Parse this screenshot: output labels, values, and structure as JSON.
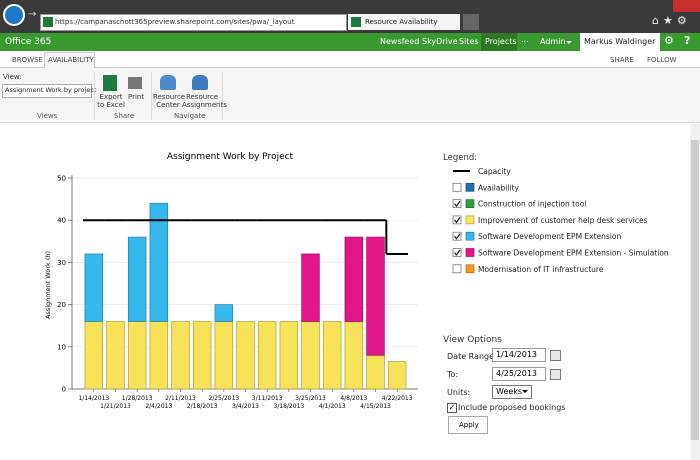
{
  "browser": {
    "url": "https://campanaschott365preview.sharepoint.com/sites/pwa/_layouts/15/PWA/Ri...",
    "tab": "Resource Availability"
  },
  "suite_bar": {
    "brand": "Office 365",
    "links": [
      "Newsfeed",
      "SkyDrive",
      "Sites",
      "Projects",
      "...",
      "Admin"
    ],
    "user": "Markus Waldinger"
  },
  "ribbon": {
    "tabs": [
      "BROWSE",
      "AVAILABILITY"
    ],
    "actions": [
      "SHARE",
      "FOLLOW"
    ],
    "view_label": "View:",
    "view_select": "Assignment Work by project",
    "groups": [
      "Views",
      "Share",
      "Navigate"
    ],
    "buttons": [
      "Export to Excel",
      "Print",
      "Resource Center",
      "Resource Assignments"
    ]
  },
  "chart_data": {
    "type": "bar",
    "stacked": true,
    "title": "Assignment Work by Project",
    "ylabel": "Assignment Work (h)",
    "categories": [
      "1/14/2013",
      "1/21/2013",
      "1/28/2013",
      "2/4/2013",
      "2/11/2013",
      "2/18/2013",
      "2/25/2013",
      "3/4/2013",
      "3/11/2013",
      "3/18/2013",
      "3/25/2013",
      "4/1/2013",
      "4/8/2013",
      "4/15/2013",
      "4/22/2013"
    ],
    "ylim": [
      0,
      50
    ],
    "yticks": [
      0,
      10,
      20,
      30,
      40,
      50
    ],
    "grid": true,
    "legend_title": "Legend:",
    "capacity": {
      "name": "Capacity",
      "color": "#000000",
      "values": [
        40,
        40,
        40,
        40,
        40,
        40,
        40,
        40,
        40,
        40,
        40,
        40,
        40,
        40,
        32
      ]
    },
    "series": [
      {
        "name": "Availability",
        "color": "#1f6fb4",
        "checked": false
      },
      {
        "name": "Construction of injection tool",
        "color": "#2e9e3a",
        "checked": true,
        "values": [
          0,
          0,
          0,
          0,
          0,
          0,
          0,
          0,
          0,
          0,
          0,
          0,
          0,
          0,
          0
        ]
      },
      {
        "name": "Improvement of customer help desk services",
        "color": "#f7e25a",
        "checked": true,
        "values": [
          16,
          16,
          16,
          16,
          16,
          16,
          16,
          16,
          16,
          16,
          16,
          16,
          16,
          8,
          6.5
        ]
      },
      {
        "name": "Software Development EPM Extension",
        "color": "#36b8ec",
        "checked": true,
        "values": [
          16,
          0,
          20,
          28,
          0,
          0,
          4,
          0,
          0,
          0,
          0,
          0,
          0,
          0,
          0
        ]
      },
      {
        "name": "Software Development EPM Extension - Simulation",
        "color": "#e0168a",
        "checked": true,
        "values": [
          0,
          0,
          0,
          0,
          0,
          0,
          0,
          0,
          0,
          0,
          16,
          0,
          20,
          28,
          0
        ]
      },
      {
        "name": "Modernisation of IT infrastructure",
        "color": "#f39a1e",
        "checked": false
      }
    ]
  },
  "view_options": {
    "title": "View Options",
    "date_range_label": "Date Range:",
    "date_range": "1/14/2013",
    "to_label": "To:",
    "to": "4/25/2013",
    "units_label": "Units:",
    "units": "Weeks",
    "include_proposed": "Include proposed bookings",
    "apply": "Apply"
  }
}
